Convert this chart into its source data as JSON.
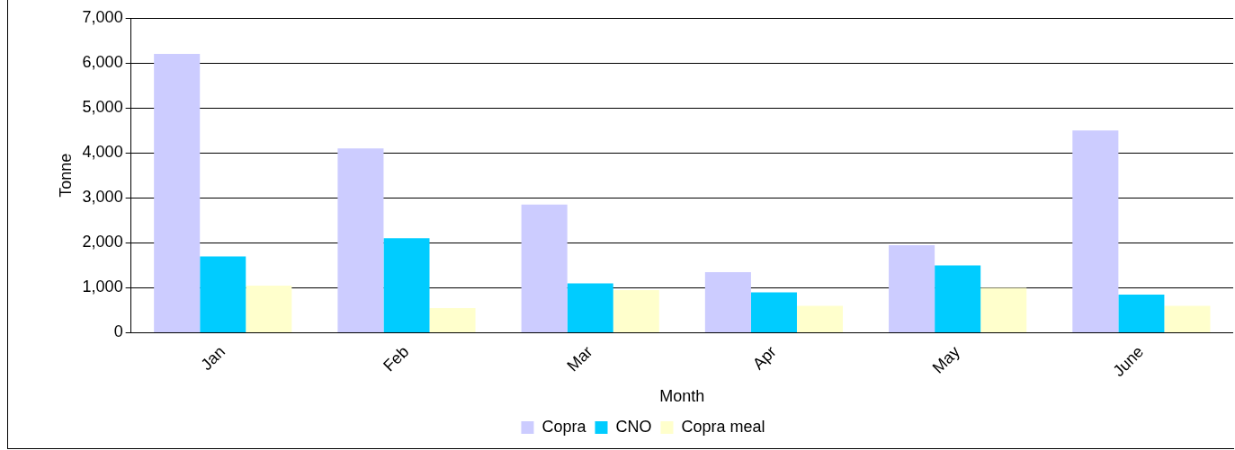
{
  "chart_data": {
    "type": "bar",
    "xlabel": "Month",
    "ylabel": "Tonne",
    "categories": [
      "Jan",
      "Feb",
      "Mar",
      "Apr",
      "May",
      "June"
    ],
    "series": [
      {
        "name": "Copra",
        "color": "#ccccff",
        "values": [
          6200,
          4100,
          2850,
          1350,
          1950,
          4500
        ]
      },
      {
        "name": "CNO",
        "color": "#00ccff",
        "values": [
          1700,
          2100,
          1100,
          900,
          1500,
          850
        ]
      },
      {
        "name": "Copra meal",
        "color": "#ffffcc",
        "values": [
          1050,
          550,
          950,
          600,
          1000,
          600
        ]
      }
    ],
    "ylim": [
      0,
      7000
    ],
    "yticks": [
      {
        "value": 0,
        "label": "0"
      },
      {
        "value": 1000,
        "label": "1,000"
      },
      {
        "value": 2000,
        "label": "2,000"
      },
      {
        "value": 3000,
        "label": "3,000"
      },
      {
        "value": 4000,
        "label": "4,000"
      },
      {
        "value": 5000,
        "label": "5,000"
      },
      {
        "value": 6000,
        "label": "6,000"
      },
      {
        "value": 7000,
        "label": "7,000"
      }
    ],
    "grid": "y",
    "legend": "bottom"
  }
}
